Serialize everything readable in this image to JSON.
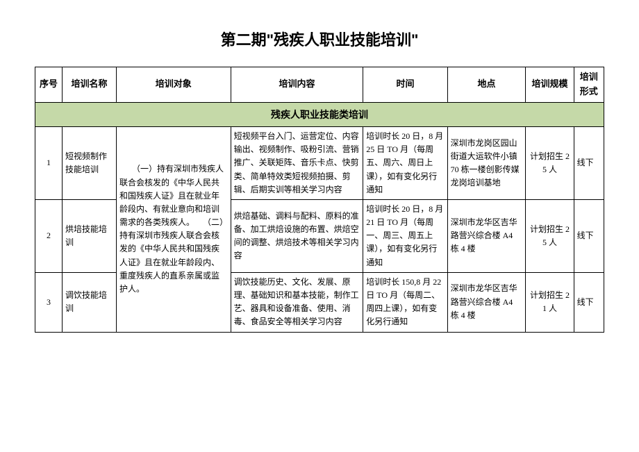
{
  "title": "第二期\"残疾人职业技能培训\"",
  "headers": {
    "seq": "序号",
    "name": "培训名称",
    "target": "培训对象",
    "content": "培训内容",
    "time": "时间",
    "location": "地点",
    "scale": "培训规模",
    "form": "培训形式"
  },
  "section_title": "残疾人职业技能类培训",
  "target_shared": "　　（一）持有深圳市残疾人联合会核发的《中华人民共和国残疾人证》且在就业年龄段内、有就业意向和培训需求的各类残疾人。　　（二）持有深圳市残疾人联合会核发的《中华人民共和国残疾人证》且在就业年龄段内、重度残疾人的直系亲属或监护人。",
  "rows": [
    {
      "seq": "1",
      "name": "短视频制作技能培训",
      "content": "短视频平台入门、运营定位、内容输出、视频制作、吸粉引流、营销推广、关联矩阵、音乐卡点、快剪类、简单特效类短视频拍摄、剪辑、后期实训等相关学习内容",
      "time": "培训时长 20 日，8 月 25 日 TO 月（每周五、周六、周日上课），如有变化另行通知",
      "location": "深圳市龙岗区园山街道大运软件小镇 70 栋一楼创影传媒龙岗培训基地",
      "scale": "计划招生 25 人",
      "form": "线下"
    },
    {
      "seq": "2",
      "name": "烘培技能培训",
      "content": "烘焙基础、调料与配料、原料的准备、加工烘焙设施的布置、烘焙空间的调整、烘焙技术等相关学习内容",
      "time": "培训时长 20 日，8 月 21 日 TO 月（每周一、周三、周五上课），如有变化另行通知",
      "location": "深圳市龙华区吉华路营兴综合楼 A4 栋 4 楼",
      "scale": "计划招生 25 人",
      "form": "线下"
    },
    {
      "seq": "3",
      "name": "调饮技能培训",
      "content": "调饮技能历史、文化、发展、原理、基础知识和基本技能，制作工艺、器具和设备准备、使用、消毒、食品安全等相关学习内容",
      "time": "培训时长 150,8 月 22 日 TO 月（每周二、周四上课），如有变化另行通知",
      "location": "深圳市龙华区吉华路营兴综合楼 A4 栋 4 楼",
      "scale": "计划招生 21 人",
      "form": "线下"
    }
  ]
}
